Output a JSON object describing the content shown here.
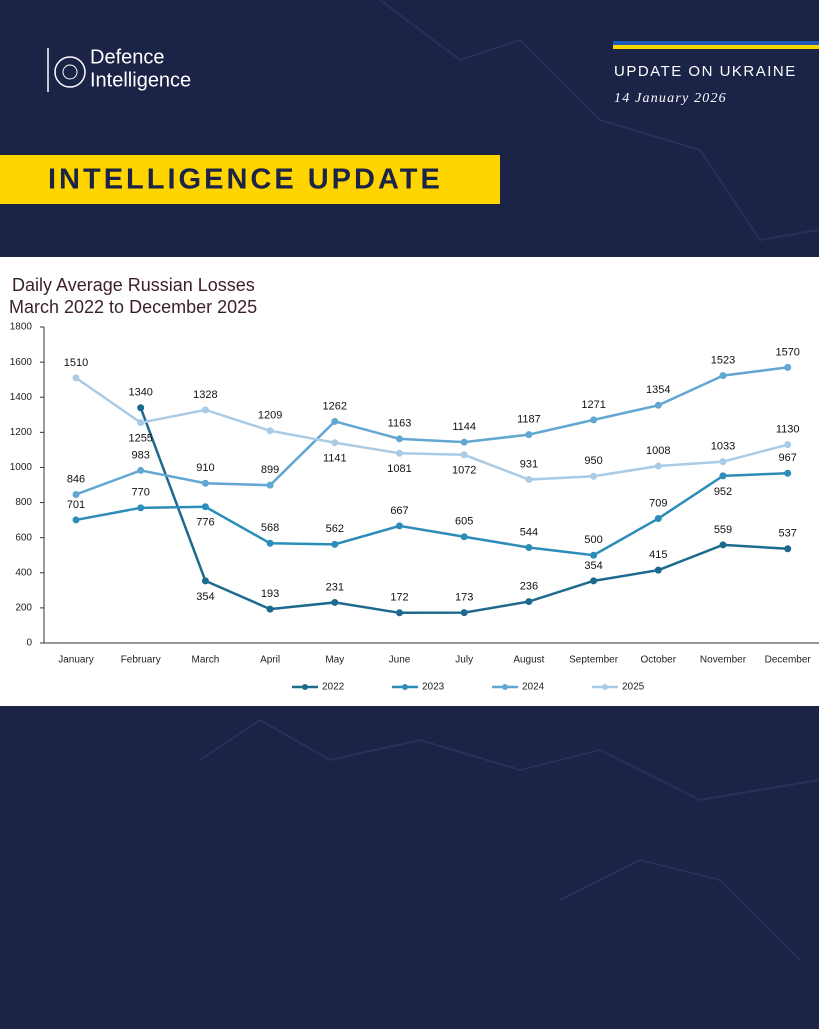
{
  "header": {
    "logo_line1": "Defence",
    "logo_line2": "Intelligence",
    "update_title": "UPDATE ON UKRAINE",
    "date": "14 January 2026",
    "banner": "INTELLIGENCE UPDATE"
  },
  "chart_data": {
    "type": "line",
    "title": "Daily Average Russian Losses",
    "subtitle": "March 2022 to December 2025",
    "categories": [
      "January",
      "February",
      "March",
      "April",
      "May",
      "June",
      "July",
      "August",
      "September",
      "October",
      "November",
      "December"
    ],
    "series": [
      {
        "name": "2022",
        "color": "#1d6a8e",
        "values": [
          null,
          1340,
          354,
          193,
          231,
          172,
          173,
          236,
          354,
          415,
          559,
          537
        ]
      },
      {
        "name": "2023",
        "color": "#2b8db8",
        "values": [
          701,
          770,
          776,
          568,
          562,
          667,
          605,
          544,
          500,
          709,
          952,
          967
        ]
      },
      {
        "name": "2024",
        "color": "#62a7d2",
        "values": [
          846,
          983,
          910,
          899,
          1262,
          1163,
          1144,
          1187,
          1271,
          1354,
          1523,
          1570
        ]
      },
      {
        "name": "2025",
        "color": "#aacbe6",
        "values": [
          1510,
          1255,
          1328,
          1209,
          1141,
          1081,
          1072,
          931,
          950,
          1008,
          1033,
          1130
        ]
      }
    ],
    "ylim": [
      0,
      1800
    ],
    "yticks": [
      0,
      200,
      400,
      600,
      800,
      1000,
      1200,
      1400,
      1600,
      1800
    ],
    "grid": false,
    "legend": "bottom"
  }
}
